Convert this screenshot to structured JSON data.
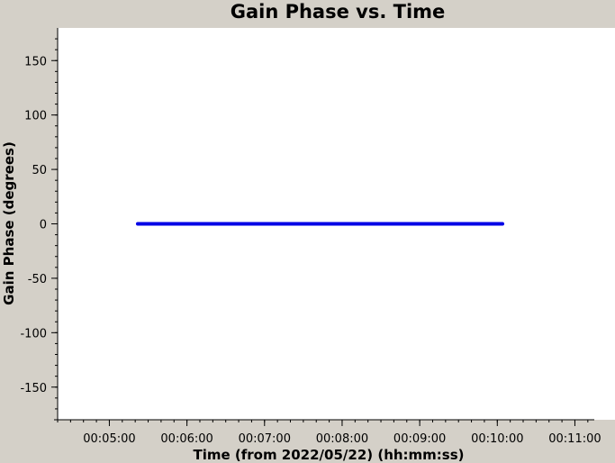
{
  "chart_data": {
    "type": "line",
    "title": "Gain Phase vs. Time",
    "xlabel": "Time (from 2022/05/22) (hh:mm:ss)",
    "ylabel": "Gain Phase (degrees)",
    "xlim": [
      "00:04:20",
      "00:11:15"
    ],
    "ylim": [
      -180,
      180
    ],
    "x_ticks": [
      "00:05:00",
      "00:06:00",
      "00:07:00",
      "00:08:00",
      "00:09:00",
      "00:10:00",
      "00:11:00"
    ],
    "y_ticks": [
      150,
      100,
      50,
      0,
      -50,
      -100,
      -150
    ],
    "grid": false,
    "series": [
      {
        "color": "#0000e6",
        "x": [
          "00:05:22",
          "00:06:00",
          "00:07:00",
          "00:08:00",
          "00:09:00",
          "00:10:00",
          "00:10:04"
        ],
        "y": [
          0,
          0,
          0,
          0,
          0,
          0,
          0
        ]
      }
    ]
  },
  "colors": {
    "background": "#d4d0c8",
    "plot_area": "#ffffff",
    "axis": "#000000"
  }
}
